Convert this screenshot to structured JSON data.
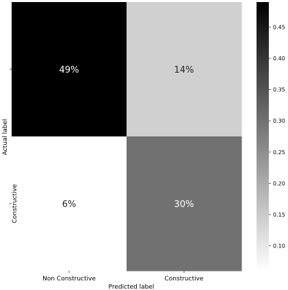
{
  "chart_data": {
    "type": "heatmap",
    "title": "",
    "xlabel": "Predicted label",
    "ylabel": "Actual label",
    "x_categories": [
      "Non Constructive",
      "Constructive"
    ],
    "y_categories": [
      "Non Constructive",
      "Constructive"
    ],
    "values": [
      [
        0.49,
        0.14
      ],
      [
        0.06,
        0.3
      ]
    ],
    "annotations": [
      [
        "49%",
        "14%"
      ],
      [
        "6%",
        "30%"
      ]
    ],
    "colormap": "Greys",
    "colorbar": {
      "vmin": 0.06,
      "vmax": 0.49,
      "ticks": [
        0.1,
        0.15,
        0.2,
        0.25,
        0.3,
        0.35,
        0.4,
        0.45
      ],
      "tick_labels": [
        "0.10",
        "0.15",
        "0.20",
        "0.25",
        "0.30",
        "0.35",
        "0.40",
        "0.45"
      ]
    },
    "grid": false
  }
}
